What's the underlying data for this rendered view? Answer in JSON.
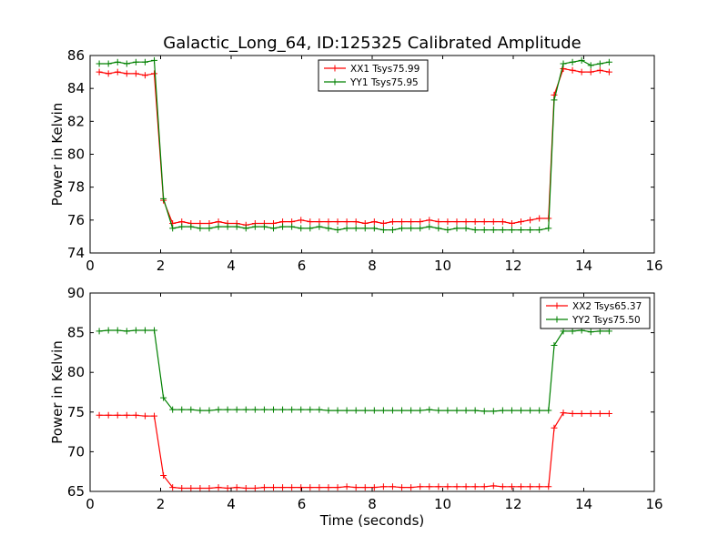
{
  "figure": {
    "background": "#ffffff"
  },
  "chart_data": [
    {
      "type": "line",
      "title": "Galactic_Long_64, ID:125325 Calibrated Amplitude",
      "xlabel": "",
      "ylabel": "Power in Kelvin",
      "xlim": [
        0,
        16
      ],
      "ylim": [
        74,
        86
      ],
      "xticks": [
        0,
        2,
        4,
        6,
        8,
        10,
        12,
        14,
        16
      ],
      "yticks": [
        74,
        76,
        78,
        80,
        82,
        84,
        86
      ],
      "grid": false,
      "legend_position": "top-center",
      "x": [
        0.26,
        0.52,
        0.78,
        1.04,
        1.3,
        1.56,
        1.82,
        2.08,
        2.34,
        2.6,
        2.86,
        3.12,
        3.38,
        3.64,
        3.9,
        4.16,
        4.42,
        4.68,
        4.94,
        5.2,
        5.46,
        5.72,
        5.98,
        6.24,
        6.5,
        6.76,
        7.02,
        7.28,
        7.54,
        7.8,
        8.06,
        8.32,
        8.58,
        8.84,
        9.1,
        9.36,
        9.62,
        9.88,
        10.14,
        10.4,
        10.66,
        10.92,
        11.18,
        11.44,
        11.7,
        11.96,
        12.22,
        12.48,
        12.74,
        13.0,
        13.16,
        13.42,
        13.68,
        13.94,
        14.2,
        14.46,
        14.72
      ],
      "series": [
        {
          "name": "XX1 Tsys75.99",
          "color": "#ff0000",
          "values": [
            85.0,
            84.9,
            85.0,
            84.9,
            84.9,
            84.8,
            84.9,
            77.2,
            75.8,
            75.9,
            75.8,
            75.8,
            75.8,
            75.9,
            75.8,
            75.8,
            75.7,
            75.8,
            75.8,
            75.8,
            75.9,
            75.9,
            76.0,
            75.9,
            75.9,
            75.9,
            75.9,
            75.9,
            75.9,
            75.8,
            75.9,
            75.8,
            75.9,
            75.9,
            75.9,
            75.9,
            76.0,
            75.9,
            75.9,
            75.9,
            75.9,
            75.9,
            75.9,
            75.9,
            75.9,
            75.8,
            75.9,
            76.0,
            76.1,
            76.1,
            83.6,
            85.2,
            85.1,
            85.0,
            85.0,
            85.1,
            85.0
          ]
        },
        {
          "name": "YY1 Tsys75.95",
          "color": "#008000",
          "values": [
            85.5,
            85.5,
            85.6,
            85.5,
            85.6,
            85.6,
            85.7,
            77.3,
            75.5,
            75.6,
            75.6,
            75.5,
            75.5,
            75.6,
            75.6,
            75.6,
            75.5,
            75.6,
            75.6,
            75.5,
            75.6,
            75.6,
            75.5,
            75.5,
            75.6,
            75.5,
            75.4,
            75.5,
            75.5,
            75.5,
            75.5,
            75.4,
            75.4,
            75.5,
            75.5,
            75.5,
            75.6,
            75.5,
            75.4,
            75.5,
            75.5,
            75.4,
            75.4,
            75.4,
            75.4,
            75.4,
            75.4,
            75.4,
            75.4,
            75.5,
            83.3,
            85.5,
            85.6,
            85.7,
            85.4,
            85.5,
            85.6
          ]
        }
      ]
    },
    {
      "type": "line",
      "title": "",
      "xlabel": "Time (seconds)",
      "ylabel": "Power in Kelvin",
      "xlim": [
        0,
        16
      ],
      "ylim": [
        65,
        90
      ],
      "xticks": [
        0,
        2,
        4,
        6,
        8,
        10,
        12,
        14,
        16
      ],
      "yticks": [
        65,
        70,
        75,
        80,
        85,
        90
      ],
      "grid": false,
      "legend_position": "top-right",
      "x": [
        0.26,
        0.52,
        0.78,
        1.04,
        1.3,
        1.56,
        1.82,
        2.08,
        2.34,
        2.6,
        2.86,
        3.12,
        3.38,
        3.64,
        3.9,
        4.16,
        4.42,
        4.68,
        4.94,
        5.2,
        5.46,
        5.72,
        5.98,
        6.24,
        6.5,
        6.76,
        7.02,
        7.28,
        7.54,
        7.8,
        8.06,
        8.32,
        8.58,
        8.84,
        9.1,
        9.36,
        9.62,
        9.88,
        10.14,
        10.4,
        10.66,
        10.92,
        11.18,
        11.44,
        11.7,
        11.96,
        12.22,
        12.48,
        12.74,
        13.0,
        13.16,
        13.42,
        13.68,
        13.94,
        14.2,
        14.46,
        14.72
      ],
      "series": [
        {
          "name": "XX2 Tsys65.37",
          "color": "#ff0000",
          "values": [
            74.6,
            74.6,
            74.6,
            74.6,
            74.6,
            74.5,
            74.5,
            67.0,
            65.5,
            65.4,
            65.4,
            65.4,
            65.4,
            65.5,
            65.4,
            65.5,
            65.4,
            65.4,
            65.5,
            65.5,
            65.5,
            65.5,
            65.5,
            65.5,
            65.5,
            65.5,
            65.5,
            65.6,
            65.5,
            65.5,
            65.5,
            65.6,
            65.6,
            65.5,
            65.5,
            65.6,
            65.6,
            65.6,
            65.6,
            65.6,
            65.6,
            65.6,
            65.6,
            65.7,
            65.6,
            65.6,
            65.6,
            65.6,
            65.6,
            65.6,
            73.0,
            74.9,
            74.8,
            74.8,
            74.8,
            74.8,
            74.8
          ]
        },
        {
          "name": "YY2 Tsys75.50",
          "color": "#008000",
          "values": [
            85.2,
            85.3,
            85.3,
            85.2,
            85.3,
            85.3,
            85.3,
            76.8,
            75.3,
            75.3,
            75.3,
            75.2,
            75.2,
            75.3,
            75.3,
            75.3,
            75.3,
            75.3,
            75.3,
            75.3,
            75.3,
            75.3,
            75.3,
            75.3,
            75.3,
            75.2,
            75.2,
            75.2,
            75.2,
            75.2,
            75.2,
            75.2,
            75.2,
            75.2,
            75.2,
            75.2,
            75.3,
            75.2,
            75.2,
            75.2,
            75.2,
            75.2,
            75.1,
            75.1,
            75.2,
            75.2,
            75.2,
            75.2,
            75.2,
            75.2,
            83.4,
            85.2,
            85.2,
            85.3,
            85.1,
            85.2,
            85.2
          ]
        }
      ]
    }
  ]
}
